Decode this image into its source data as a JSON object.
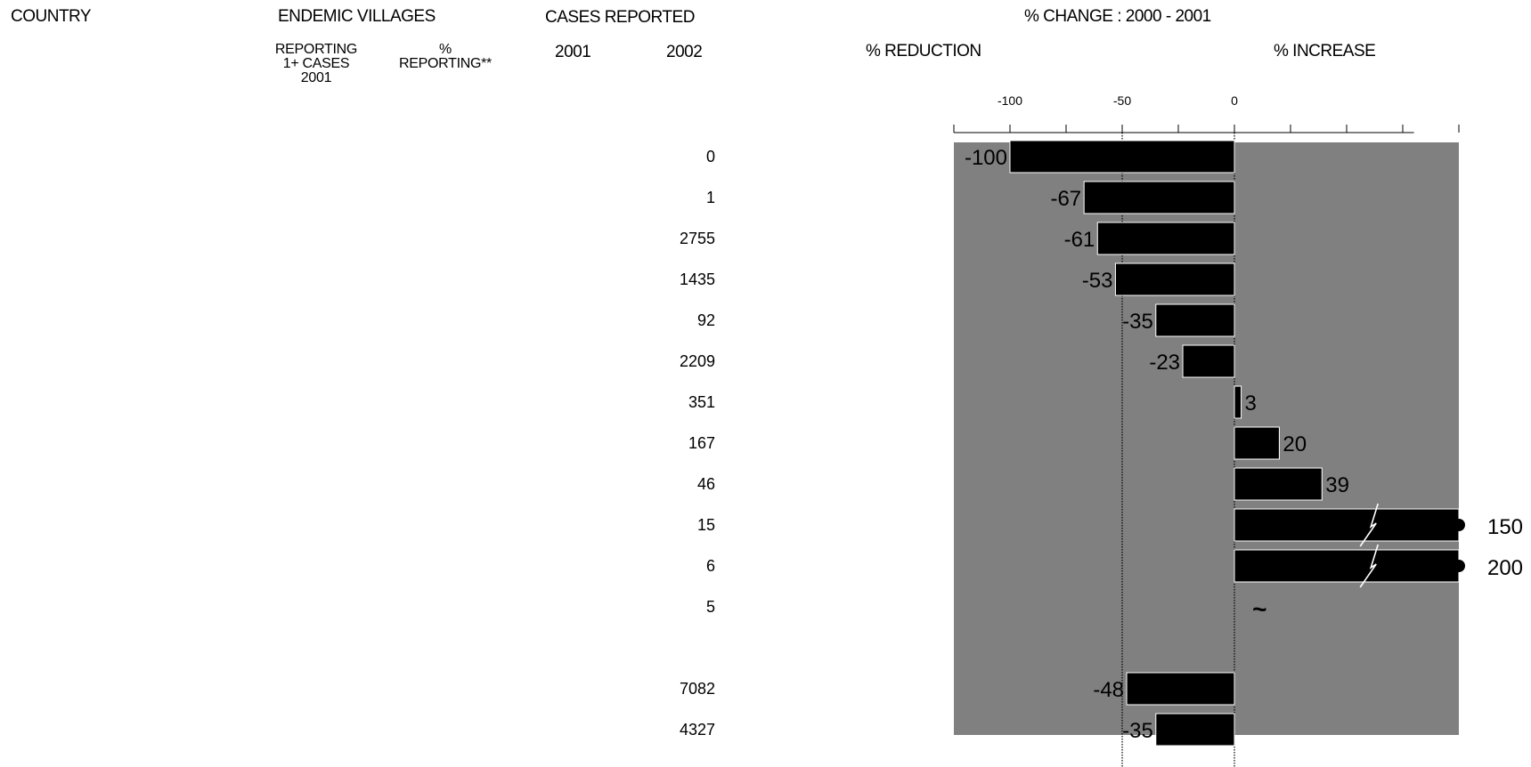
{
  "headers": {
    "country": "COUNTRY",
    "endemic_villages": "ENDEMIC VILLAGES",
    "cases_reported": "CASES REPORTED",
    "pct_change": "% CHANGE :  2000 - 2001",
    "reporting_cases": "REPORTING\n1+ CASES\n2001",
    "pct_reporting": "%\nREPORTING**",
    "year_2001": "2001",
    "year_2002": "2002",
    "pct_reduction": "% REDUCTION",
    "pct_increase": "% INCREASE"
  },
  "colors": {
    "plot_bg": "#808080",
    "bar": "#000000",
    "bar_edge": "#ffffff",
    "text": "#000000"
  },
  "chart_data": {
    "type": "bar",
    "orientation": "horizontal",
    "xlim": [
      -125,
      100
    ],
    "ticks": [
      -100,
      -50,
      0
    ],
    "tick_labels": [
      "-100",
      "-50",
      "0"
    ],
    "reference_lines": [
      -50,
      0
    ],
    "grid": false,
    "rows": [
      {
        "cases_2002": "0",
        "value": -100,
        "label": "-100"
      },
      {
        "cases_2002": "1",
        "value": -67,
        "label": "-67"
      },
      {
        "cases_2002": "2755",
        "value": -61,
        "label": "-61"
      },
      {
        "cases_2002": "1435",
        "value": -53,
        "label": "-53"
      },
      {
        "cases_2002": "92",
        "value": -35,
        "label": "-35"
      },
      {
        "cases_2002": "2209",
        "value": -23,
        "label": "-23"
      },
      {
        "cases_2002": "351",
        "value": 3,
        "label": "3"
      },
      {
        "cases_2002": "167",
        "value": 20,
        "label": "20"
      },
      {
        "cases_2002": "46",
        "value": 39,
        "label": "39"
      },
      {
        "cases_2002": "15",
        "value": 150,
        "label": "150",
        "truncated": true
      },
      {
        "cases_2002": "6",
        "value": 200,
        "label": "200",
        "truncated": true
      },
      {
        "cases_2002": "5",
        "value": null,
        "label": "~"
      },
      {
        "cases_2002": "",
        "value": null,
        "label": ""
      },
      {
        "cases_2002": "7082",
        "value": -48,
        "label": "-48"
      },
      {
        "cases_2002": "4327",
        "value": -35,
        "label": "-35"
      }
    ]
  }
}
